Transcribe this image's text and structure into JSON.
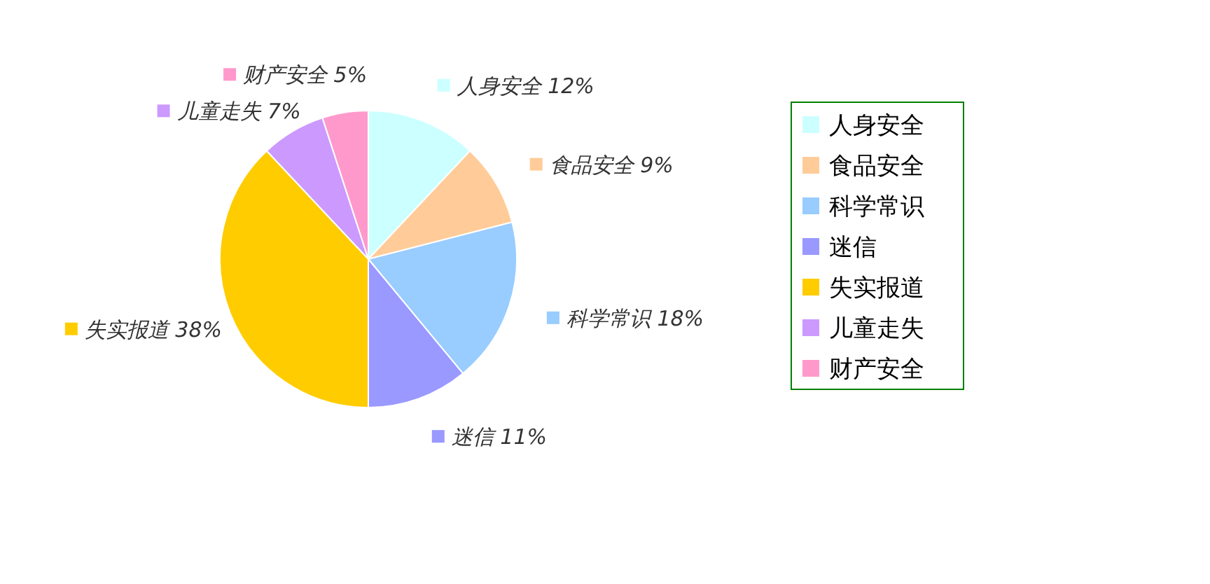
{
  "chart_data": {
    "type": "pie",
    "categories": [
      "人身安全",
      "食品安全",
      "科学常识",
      "迷信",
      "失实报道",
      "儿童走失",
      "财产安全"
    ],
    "values": [
      12,
      9,
      18,
      11,
      38,
      7,
      5
    ],
    "value_labels": [
      "12%",
      "9%",
      "18%",
      "11%",
      "38%",
      "7%",
      "5%"
    ],
    "colors": [
      "#ccffff",
      "#ffcc99",
      "#99ccff",
      "#9999ff",
      "#ffcc00",
      "#cc99ff",
      "#ff99cc"
    ],
    "legend": "right"
  }
}
